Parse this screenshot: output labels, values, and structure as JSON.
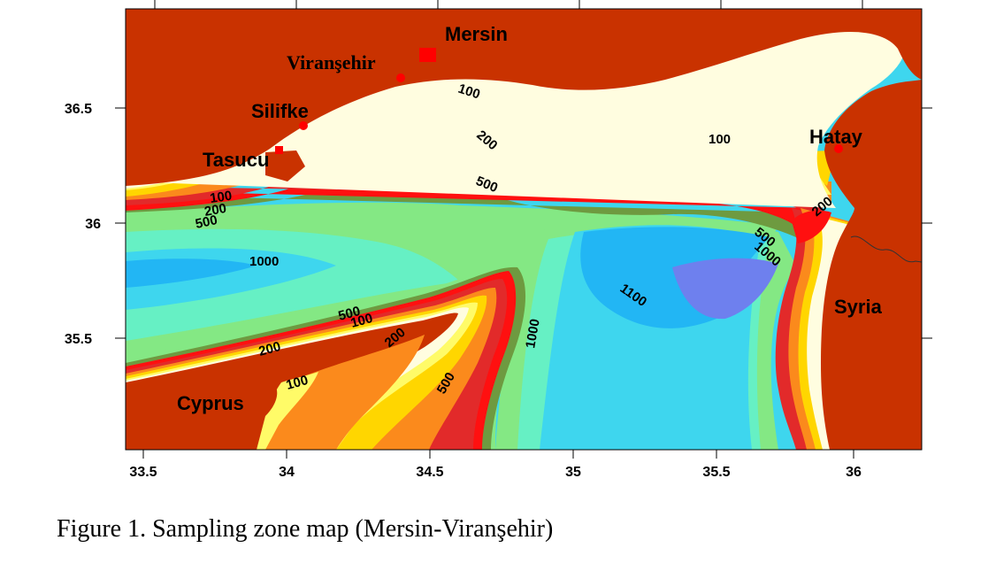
{
  "map": {
    "axes": {
      "x_ticks": [
        "33.5",
        "34",
        "34.5",
        "35",
        "35.5",
        "36"
      ],
      "y_ticks": [
        "36.5",
        "36",
        "35.5"
      ],
      "x_range": [
        33.46,
        36.22
      ],
      "y_range": [
        35.02,
        36.91
      ]
    },
    "places": [
      {
        "id": "mersin",
        "name": "Mersin",
        "marker": "square"
      },
      {
        "id": "viransehir",
        "name": "Viranşehir",
        "marker": "dot"
      },
      {
        "id": "silifke",
        "name": "Silifke",
        "marker": "dot"
      },
      {
        "id": "tasucu",
        "name": "Tasucu",
        "marker": "square"
      },
      {
        "id": "hatay",
        "name": "Hatay",
        "marker": "dot"
      },
      {
        "id": "syria",
        "name": "Syria",
        "marker": "none"
      },
      {
        "id": "cyprus",
        "name": "Cyprus",
        "marker": "none"
      }
    ],
    "contour_labels": [
      "100",
      "200",
      "500",
      "1000",
      "1100"
    ],
    "depth_colors": {
      "land": "#c93200",
      "d0": "#fffde0",
      "d50": "#fffb68",
      "d100": "#ffd600",
      "d200": "#fb8a1c",
      "d300": "#e22a2a",
      "d400": "#ff1010",
      "d500": "#6e9a40",
      "d600": "#84e884",
      "d800": "#66f0c4",
      "d1000": "#3ed6ee",
      "d1100": "#22b6f4",
      "d1200": "#6e80ee"
    }
  },
  "caption": "Figure 1. Sampling zone map (Mersin-Viranşehir)"
}
